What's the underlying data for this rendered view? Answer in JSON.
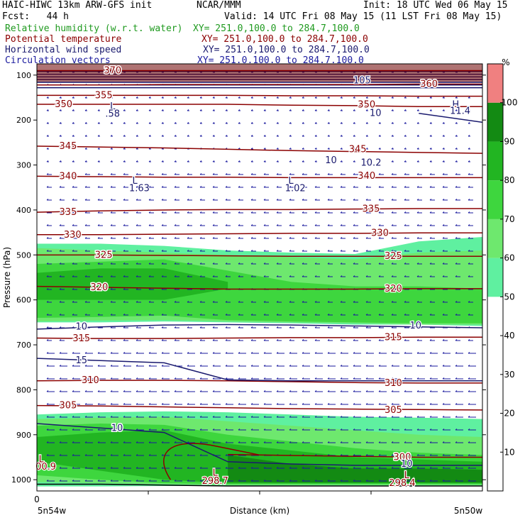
{
  "header": {
    "model": "HAIC-HIWC 13km ARW-GFS init",
    "center": "NCAR/MMM",
    "init": "Init: 18 UTC Wed 06 May 15",
    "fcst": "Fcst:   44 h",
    "valid": "Valid: 14 UTC Fri 08 May 15 (11 LST Fri 08 May 15)",
    "fields": [
      {
        "name": "Relative humidity (w.r.t. water)",
        "xy": "XY= 251.0,100.0 to 284.7,100.0",
        "color": "#1f9a1f"
      },
      {
        "name": "Potential temperature",
        "xy": "XY= 251.0,100.0 to 284.7,100.0",
        "color": "#8b0000"
      },
      {
        "name": "Horizontal wind speed",
        "xy": "XY= 251.0,100.0 to 284.7,100.0",
        "color": "#1a1a6e"
      },
      {
        "name": "Circulation vectors",
        "xy": "XY= 251.0,100.0 to 284.7,100.0",
        "color": "#1a1a9e"
      }
    ]
  },
  "chart_data": {
    "type": "heatmap",
    "xlabel": "Distance (km)",
    "ylabel": "Pressure (hPa)",
    "x_ticks": [
      "0",
      "5n54w",
      "5n50w"
    ],
    "y_ticks": [
      100,
      200,
      300,
      400,
      500,
      600,
      700,
      800,
      900,
      1000
    ],
    "ylim": [
      1025,
      75
    ],
    "colorbar": {
      "unit": "%",
      "ticks": [
        10,
        20,
        30,
        40,
        50,
        60,
        70,
        80,
        90,
        100
      ],
      "bins": [
        {
          "range": [
            0,
            50
          ],
          "color": "#ffffff"
        },
        {
          "range": [
            50,
            60
          ],
          "color": "#5ff0a0"
        },
        {
          "range": [
            60,
            70
          ],
          "color": "#6ee86e"
        },
        {
          "range": [
            70,
            80
          ],
          "color": "#3ed63e"
        },
        {
          "range": [
            80,
            90
          ],
          "color": "#22b522"
        },
        {
          "range": [
            90,
            100
          ],
          "color": "#138a13"
        },
        {
          "range": [
            100,
            110
          ],
          "color": "#f08080"
        }
      ]
    },
    "rh_regions": [
      {
        "bin": 1,
        "top": [
          475,
          475,
          480,
          490,
          495,
          498,
          470,
          460
        ],
        "bottom": [
          650,
          650,
          648,
          650,
          652,
          655,
          655,
          658
        ]
      },
      {
        "bin": 2,
        "top": [
          485,
          490,
          495,
          500,
          505,
          510,
          495,
          490
        ],
        "bottom": [
          648,
          646,
          645,
          648,
          650,
          652,
          655,
          655
        ]
      },
      {
        "bin": 3,
        "top": [
          520,
          515,
          510,
          535,
          560,
          570,
          570,
          575
        ],
        "bottom": [
          640,
          638,
          635,
          645,
          648,
          650,
          652,
          652
        ]
      },
      {
        "bin": 4,
        "top": [
          540,
          530,
          530,
          560,
          0,
          0,
          0,
          0
        ],
        "bottom": [
          600,
          600,
          600,
          575,
          0,
          0,
          0,
          0
        ]
      },
      {
        "bin": 1,
        "top": [
          855,
          850,
          848,
          850,
          855,
          860,
          862,
          865
        ],
        "bottom": [
          1015,
          1015,
          1014,
          1014,
          1013,
          1013,
          1013,
          1013
        ]
      },
      {
        "bin": 2,
        "top": [
          865,
          862,
          860,
          870,
          880,
          890,
          900,
          905
        ],
        "bottom": [
          1005,
          1008,
          1010,
          1012,
          1012,
          1012,
          1012,
          1012
        ]
      },
      {
        "bin": 3,
        "top": [
          880,
          875,
          878,
          900,
          915,
          930,
          940,
          945
        ],
        "bottom": [
          990,
          1000,
          1008,
          1010,
          1010,
          1010,
          1010,
          1010
        ]
      },
      {
        "bin": 4,
        "top": [
          905,
          895,
          890,
          920,
          935,
          950,
          955,
          960
        ],
        "bottom": [
          960,
          980,
          1000,
          1008,
          1008,
          1008,
          1008,
          1008
        ]
      },
      {
        "bin": 5,
        "top": [
          0,
          0,
          0,
          945,
          965,
          975,
          975,
          978
        ],
        "bottom": [
          0,
          0,
          0,
          1005,
          1006,
          1006,
          1006,
          1006
        ]
      }
    ],
    "theta_contours": [
      {
        "value": 370,
        "p": [
          90,
          90,
          90,
          90,
          90,
          90,
          90,
          90
        ],
        "label_x": 0.17
      },
      {
        "value": 360,
        "p": [
          122,
          122,
          121,
          121,
          121,
          121,
          120,
          120
        ],
        "label_x": 0.88
      },
      {
        "value": 355,
        "p": [
          145,
          145,
          145,
          145,
          146,
          146,
          147,
          147
        ],
        "label_x": 0.15
      },
      {
        "value": 350,
        "p": [
          165,
          165,
          165,
          165,
          167,
          168,
          170,
          170
        ],
        "label_x": 0.06
      },
      {
        "value": 345,
        "p": [
          258,
          260,
          262,
          265,
          268,
          270,
          272,
          274
        ],
        "label_x": 0.07
      },
      {
        "value": 340,
        "p": [
          325,
          326,
          327,
          327,
          328,
          328,
          328,
          328
        ],
        "label_x": 0.07
      },
      {
        "value": 335,
        "p": [
          405,
          402,
          400,
          399,
          399,
          398,
          397,
          397
        ],
        "label_x": 0.07
      },
      {
        "value": 330,
        "p": [
          455,
          455,
          454,
          453,
          452,
          452,
          451,
          451
        ],
        "label_x": 0.08
      },
      {
        "value": 325,
        "p": [
          500,
          500,
          501,
          502,
          503,
          503,
          503,
          503
        ],
        "label_x": 0.15
      },
      {
        "value": 320,
        "p": [
          570,
          572,
          574,
          576,
          576,
          576,
          575,
          575
        ],
        "label_x": 0.14
      },
      {
        "value": 315,
        "p": [
          685,
          686,
          686,
          685,
          684,
          684,
          683,
          683
        ],
        "label_x": 0.1
      },
      {
        "value": 310,
        "p": [
          780,
          779,
          779,
          780,
          782,
          784,
          785,
          785
        ],
        "label_x": 0.12
      },
      {
        "value": 305,
        "p": [
          835,
          836,
          838,
          840,
          842,
          843,
          844,
          845
        ],
        "label_x": 0.07
      },
      {
        "value": 300,
        "p": [
          0,
          0,
          0,
          944,
          946,
          948,
          950,
          950
        ],
        "label_x": 0.82
      }
    ],
    "wind_contours": [
      {
        "value": 10,
        "p": [
          665,
          660,
          656,
          655,
          656,
          658,
          660,
          662
        ],
        "label_x": 0.1
      },
      {
        "value": 15,
        "p": [
          730,
          735,
          740,
          778,
          780,
          780,
          780,
          780
        ],
        "label_x": 0.1
      },
      {
        "value": 10,
        "p": [
          875,
          885,
          895,
          960,
          965,
          968,
          968,
          968
        ],
        "label_x": 0.18
      },
      {
        "value": 10,
        "p": [
          0,
          0,
          0,
          0,
          0,
          0,
          185,
          205
        ],
        "label_x": 0.76
      }
    ],
    "annotations": [
      {
        "text": "L",
        "x": 0.17,
        "p": 170,
        "kind": "wind"
      },
      {
        "text": ".58",
        "x": 0.17,
        "p": 186,
        "kind": "wind"
      },
      {
        "text": "H",
        "x": 0.94,
        "p": 166,
        "kind": "wind"
      },
      {
        "text": "11.4",
        "x": 0.95,
        "p": 180,
        "kind": "wind"
      },
      {
        "text": "L",
        "x": 0.22,
        "p": 335,
        "kind": "wind"
      },
      {
        "text": "1.63",
        "x": 0.23,
        "p": 352,
        "kind": "wind"
      },
      {
        "text": "L",
        "x": 0.57,
        "p": 335,
        "kind": "wind"
      },
      {
        "text": "1.02",
        "x": 0.58,
        "p": 352,
        "kind": "wind"
      },
      {
        "text": "10.2",
        "x": 0.75,
        "p": 295,
        "kind": "wind"
      },
      {
        "text": "10",
        "x": 0.66,
        "p": 290,
        "kind": "wind"
      },
      {
        "text": "10",
        "x": 0.85,
        "p": 657,
        "kind": "wind"
      },
      {
        "text": "10",
        "x": 0.83,
        "p": 965,
        "kind": "wind"
      },
      {
        "text": "105",
        "x": 0.73,
        "p": 112,
        "kind": "wind"
      },
      {
        "text": "350",
        "x": 0.74,
        "p": 166,
        "kind": "theta"
      },
      {
        "text": "345",
        "x": 0.72,
        "p": 265,
        "kind": "theta"
      },
      {
        "text": "340",
        "x": 0.74,
        "p": 324,
        "kind": "theta"
      },
      {
        "text": "335",
        "x": 0.75,
        "p": 398,
        "kind": "theta"
      },
      {
        "text": "330",
        "x": 0.77,
        "p": 451,
        "kind": "theta"
      },
      {
        "text": "325",
        "x": 0.8,
        "p": 503,
        "kind": "theta"
      },
      {
        "text": "320",
        "x": 0.8,
        "p": 575,
        "kind": "theta"
      },
      {
        "text": "315",
        "x": 0.8,
        "p": 683,
        "kind": "theta"
      },
      {
        "text": "310",
        "x": 0.8,
        "p": 785,
        "kind": "theta"
      },
      {
        "text": "305",
        "x": 0.8,
        "p": 845,
        "kind": "theta"
      },
      {
        "text": "L",
        "x": 0.01,
        "p": 955,
        "kind": "theta"
      },
      {
        "text": "00.9",
        "x": 0.02,
        "p": 971,
        "kind": "theta"
      },
      {
        "text": "L",
        "x": 0.4,
        "p": 985,
        "kind": "theta"
      },
      {
        "text": "298.7",
        "x": 0.4,
        "p": 1003,
        "kind": "theta"
      },
      {
        "text": "L",
        "x": 0.83,
        "p": 990,
        "kind": "theta"
      },
      {
        "text": "298.4",
        "x": 0.82,
        "p": 1008,
        "kind": "theta"
      }
    ]
  }
}
